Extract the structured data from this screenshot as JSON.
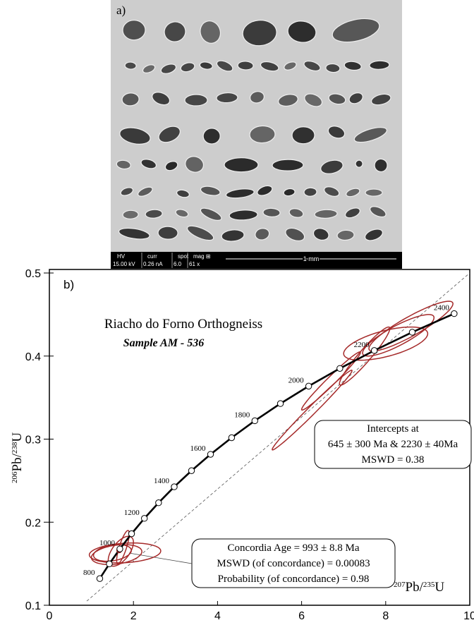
{
  "panel_a": {
    "label": "a)",
    "info_bar": [
      {
        "name": "HV",
        "value": "15.00 kV"
      },
      {
        "name": "curr",
        "value": "0.26 nA"
      },
      {
        "name": "spot",
        "value": "6.0"
      },
      {
        "name": "mag ⊞",
        "value": "61 x"
      }
    ],
    "scale_bar": "1 mm"
  },
  "chart_data": {
    "type": "concordia",
    "panel_label": "b)",
    "title": "Riacho do Forno Orthogneiss",
    "subtitle": "Sample  AM - 536",
    "x_label": [
      "207",
      "Pb/",
      "235",
      "U"
    ],
    "y_label": [
      "206",
      "Pb/",
      "238",
      "U"
    ],
    "xlim": [
      0,
      10
    ],
    "ylim": [
      0.1,
      0.5
    ],
    "xticks": [
      0,
      2,
      4,
      6,
      8,
      10
    ],
    "yticks": [
      0.1,
      0.2,
      0.3,
      0.4,
      0.5
    ],
    "concordia": {
      "color": "#000000",
      "age_labels": [
        800,
        null,
        1000,
        null,
        1200,
        null,
        1400,
        null,
        1600,
        null,
        1800,
        null,
        2000,
        null,
        2200,
        null,
        2400
      ],
      "x": [
        1.199,
        1.426,
        1.677,
        1.955,
        2.26,
        2.598,
        2.97,
        3.381,
        3.834,
        4.335,
        4.887,
        5.496,
        6.168,
        6.91,
        7.729,
        8.632,
        9.629
      ],
      "y": [
        0.1321,
        0.1498,
        0.1678,
        0.1861,
        0.2046,
        0.2234,
        0.2426,
        0.262,
        0.2817,
        0.3017,
        0.3221,
        0.3428,
        0.3638,
        0.3851,
        0.4067,
        0.4287,
        0.4511
      ]
    },
    "discordia": {
      "color": "#555555",
      "x": [
        0.89,
        10
      ],
      "y": [
        0.105,
        0.5
      ]
    },
    "ellipses": {
      "color": "#a52a2a",
      "items": [
        {
          "x": 8.6,
          "y": 0.436,
          "sx": 1.0,
          "sy": 0.03,
          "rho": 0.9
        },
        {
          "x": 8.3,
          "y": 0.425,
          "sx": 0.85,
          "sy": 0.025,
          "rho": 0.85
        },
        {
          "x": 8.0,
          "y": 0.415,
          "sx": 1.0,
          "sy": 0.02,
          "rho": 0.6
        },
        {
          "x": 7.5,
          "y": 0.4,
          "sx": 0.6,
          "sy": 0.035,
          "rho": 0.95
        },
        {
          "x": 6.7,
          "y": 0.37,
          "sx": 0.7,
          "sy": 0.035,
          "rho": 0.98
        },
        {
          "x": 6.25,
          "y": 0.335,
          "sx": 0.95,
          "sy": 0.048,
          "rho": 0.99
        },
        {
          "x": 1.8,
          "y": 0.163,
          "sx": 0.85,
          "sy": 0.012,
          "rho": 0.2
        },
        {
          "x": 1.6,
          "y": 0.161,
          "sx": 0.6,
          "sy": 0.012,
          "rho": 0.3
        },
        {
          "x": 1.5,
          "y": 0.163,
          "sx": 0.45,
          "sy": 0.01,
          "rho": 0.3
        },
        {
          "x": 1.7,
          "y": 0.165,
          "sx": 0.3,
          "sy": 0.018,
          "rho": 0.6
        },
        {
          "x": 1.75,
          "y": 0.17,
          "sx": 0.15,
          "sy": 0.02,
          "rho": 0.8
        }
      ]
    },
    "concordia_age_point": {
      "x": 1.66,
      "y": 0.166
    },
    "annotations": [
      {
        "lines": [
          "Intercepts  at",
          "645 ± 300 Ma & 2230 ± 40Ma",
          "MSWD = 0.38"
        ]
      },
      {
        "lines": [
          "Concordia Age = 993 ± 8.8 Ma",
          "MSWD  (of concordance) = 0.00083",
          "Probability  (of concordance) = 0.98"
        ]
      }
    ]
  }
}
